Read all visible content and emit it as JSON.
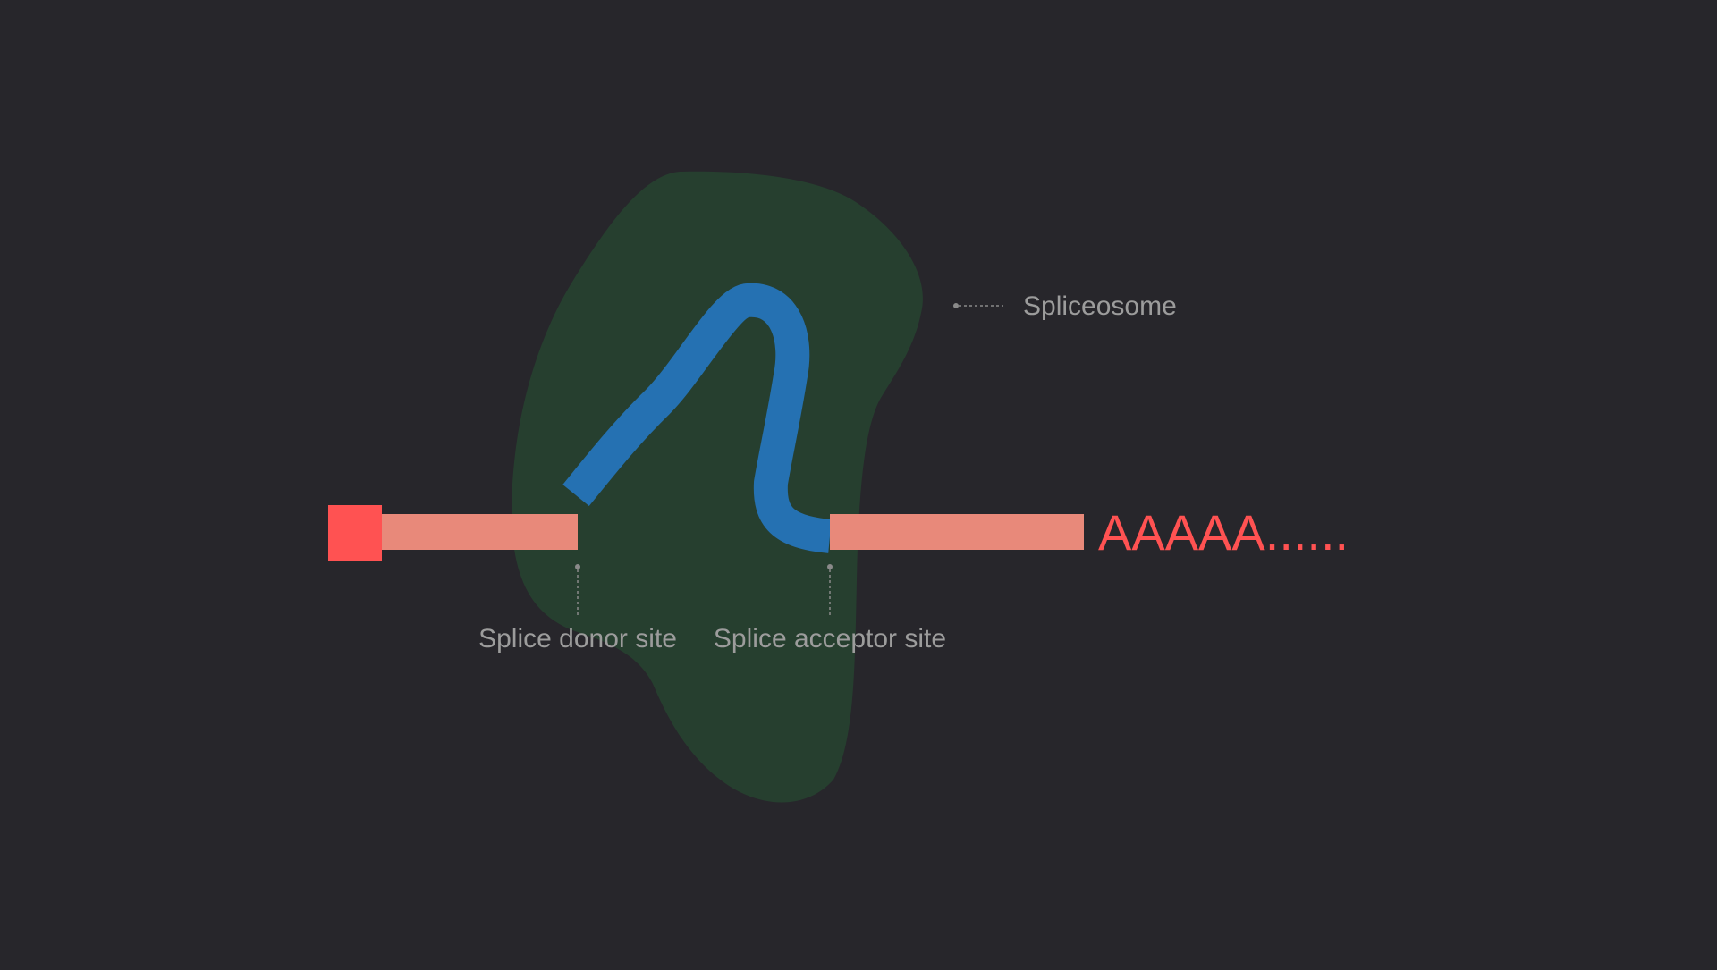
{
  "colors": {
    "background": "#27262b",
    "spliceosome": "#263f2f",
    "cap": "#ff5252",
    "exon": "#e8897a",
    "intron": "#2571b2",
    "poly_a": "#ff5252",
    "label": "#9c9c9c",
    "leader_line": "#8a8a8a"
  },
  "labels": {
    "spliceosome": "Spliceosome",
    "donor_site": "Splice donor site",
    "acceptor_site": "Splice acceptor site",
    "poly_a_tail": "AAAAA......"
  }
}
